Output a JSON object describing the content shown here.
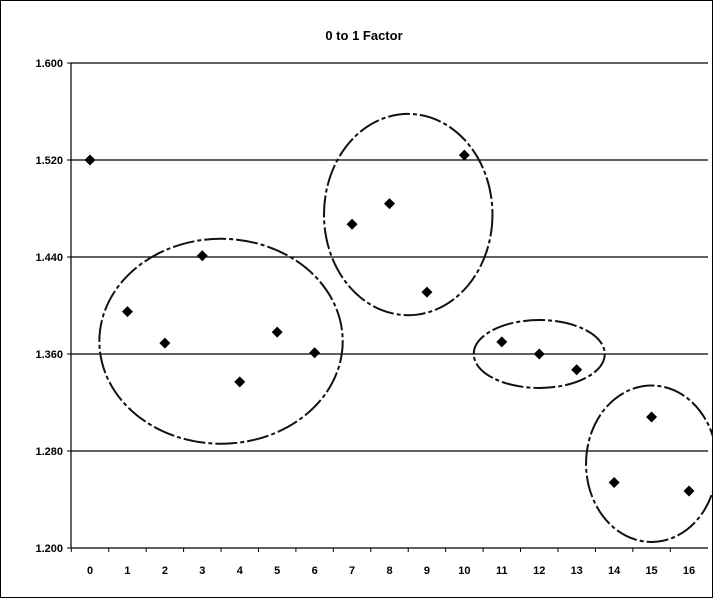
{
  "chart_data": {
    "type": "scatter",
    "title": "0 to 1 Factor",
    "xlabel": "",
    "ylabel": "",
    "x": [
      0,
      1,
      2,
      3,
      4,
      5,
      6,
      7,
      8,
      9,
      10,
      11,
      12,
      13,
      14,
      15,
      16
    ],
    "y": [
      1.52,
      1.395,
      1.369,
      1.441,
      1.337,
      1.378,
      1.361,
      1.467,
      1.484,
      1.411,
      1.524,
      1.37,
      1.36,
      1.347,
      1.254,
      1.308,
      1.247
    ],
    "xlim": [
      0,
      16
    ],
    "ylim": [
      1.2,
      1.6
    ],
    "x_ticks": [
      "0",
      "1",
      "2",
      "3",
      "4",
      "5",
      "6",
      "7",
      "8",
      "9",
      "10",
      "11",
      "12",
      "13",
      "14",
      "15",
      "16"
    ],
    "y_ticks": [
      "1.200",
      "1.280",
      "1.360",
      "1.440",
      "1.520",
      "1.600"
    ],
    "gridlines": "horizontal",
    "marker": "diamond",
    "marker_color": "#000000",
    "groups": [
      {
        "from": 1,
        "to": 6,
        "y_range": [
          1.286,
          1.455
        ]
      },
      {
        "from": 7,
        "to": 10,
        "y_range": [
          1.392,
          1.558
        ]
      },
      {
        "from": 11,
        "to": 13,
        "y_range": [
          1.332,
          1.388
        ]
      },
      {
        "from": 14,
        "to": 16,
        "y_range": [
          1.205,
          1.334
        ]
      }
    ]
  }
}
